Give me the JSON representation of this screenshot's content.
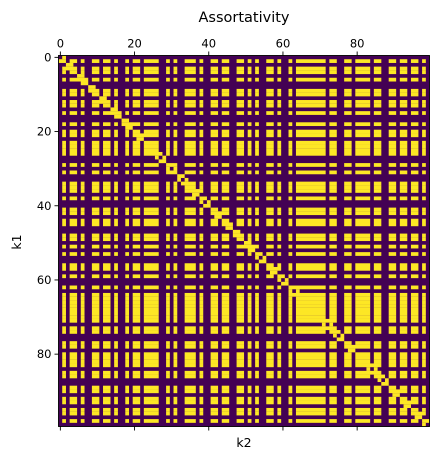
{
  "chart_data": {
    "type": "heatmap",
    "title": "Assortativity",
    "xlabel": "k2",
    "ylabel": "k1",
    "rows": 100,
    "cols": 100,
    "x_ticks": [
      0,
      20,
      40,
      60,
      80
    ],
    "y_ticks": [
      0,
      20,
      40,
      60,
      80
    ],
    "x_ticks_position": "top",
    "y_axis_inverted": true,
    "values_description": "binary matrix (0 / 1), roughly symmetric with a diagonal band",
    "colors": {
      "zero": "#440154",
      "one": "#fde725"
    },
    "row_pattern": [
      0,
      1,
      0,
      1,
      1,
      0,
      1,
      0,
      0,
      1,
      1,
      0,
      1,
      1,
      0,
      1,
      0,
      0,
      1,
      0,
      1,
      1,
      0,
      1,
      1,
      1,
      1,
      0,
      0,
      1,
      0,
      1,
      0,
      0,
      1,
      1,
      1,
      0,
      1,
      0,
      0,
      1,
      1,
      0,
      1,
      1,
      0,
      0,
      1,
      1,
      0,
      1,
      0,
      1,
      0,
      0,
      1,
      1,
      0,
      1,
      0,
      0,
      1,
      0,
      1,
      1,
      1,
      1,
      1,
      1,
      1,
      1,
      0,
      1,
      1,
      0,
      0,
      1,
      1,
      0,
      1,
      1,
      1,
      1,
      0,
      1,
      1,
      0,
      0,
      1,
      1,
      0,
      1,
      1,
      0,
      1,
      1,
      0,
      1,
      0
    ],
    "col_pattern": [
      0,
      1,
      0,
      1,
      1,
      0,
      1,
      0,
      0,
      1,
      1,
      0,
      1,
      1,
      0,
      1,
      0,
      0,
      1,
      0,
      1,
      1,
      0,
      1,
      1,
      1,
      1,
      0,
      0,
      1,
      0,
      1,
      0,
      0,
      1,
      1,
      1,
      0,
      1,
      0,
      0,
      1,
      1,
      0,
      1,
      1,
      0,
      0,
      1,
      1,
      0,
      1,
      0,
      1,
      0,
      0,
      1,
      1,
      0,
      1,
      0,
      0,
      1,
      0,
      1,
      1,
      1,
      1,
      1,
      1,
      1,
      1,
      0,
      1,
      1,
      0,
      0,
      1,
      1,
      0,
      1,
      1,
      1,
      1,
      0,
      1,
      1,
      0,
      0,
      1,
      1,
      0,
      1,
      1,
      0,
      1,
      1,
      0,
      1,
      0
    ]
  }
}
